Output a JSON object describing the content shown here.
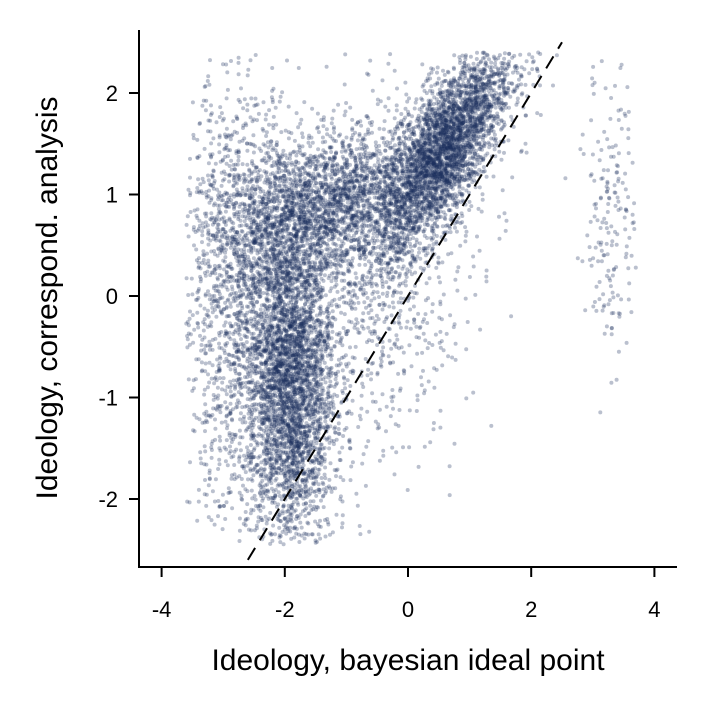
{
  "chart_data": {
    "type": "scatter",
    "title": "",
    "xlabel": "Ideology, bayesian ideal point",
    "ylabel": "Ideology, correspond. analysis",
    "xlim": [
      -4.4,
      4.4
    ],
    "ylim": [
      -2.7,
      2.6
    ],
    "xticks": [
      -4,
      -2,
      0,
      2,
      4
    ],
    "yticks": [
      -2,
      -1,
      0,
      1,
      2
    ],
    "xtick_labels": [
      "-4",
      "-2",
      "0",
      "2",
      "4"
    ],
    "ytick_labels": [
      "-2",
      "-1",
      "0",
      "1",
      "2"
    ],
    "grid": false,
    "legend": "none",
    "point_color": "#1b2f5e",
    "point_opacity": 0.3,
    "reference_line": {
      "style": "dashed",
      "color": "#000000",
      "from": [
        -2.6,
        -2.6
      ],
      "to": [
        2.5,
        2.5
      ]
    },
    "clusters": [
      {
        "name_hint": "upper-right dense",
        "count": 3200,
        "center": [
          0.6,
          1.45
        ],
        "spread": [
          0.55,
          0.35
        ],
        "trend": 0.7
      },
      {
        "name_hint": "mid band",
        "count": 2400,
        "center": [
          -1.3,
          0.9
        ],
        "spread": [
          0.9,
          0.35
        ],
        "trend": 0.15
      },
      {
        "name_hint": "lower-left column",
        "count": 3600,
        "center": [
          -1.9,
          -0.8
        ],
        "spread": [
          0.35,
          0.85
        ],
        "trend": 0.0
      },
      {
        "name_hint": "left scatter",
        "count": 1400,
        "center": [
          -2.8,
          0.0
        ],
        "spread": [
          0.45,
          1.1
        ],
        "trend": 0.0
      },
      {
        "name_hint": "mid diffuse",
        "count": 900,
        "center": [
          -0.5,
          0.2
        ],
        "spread": [
          0.8,
          0.9
        ],
        "trend": 0.3
      },
      {
        "name_hint": "right outlier column",
        "count": 180,
        "center": [
          3.3,
          0.9
        ],
        "spread": [
          0.2,
          0.8
        ],
        "trend": 0.0
      }
    ]
  }
}
